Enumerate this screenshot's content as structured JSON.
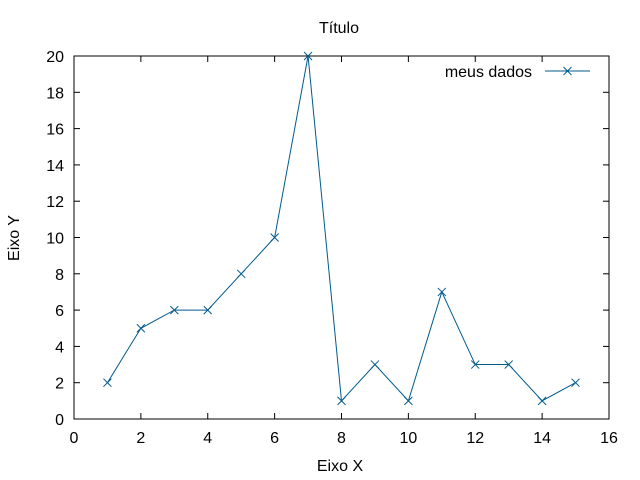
{
  "chart_data": {
    "type": "line",
    "title": "Título",
    "xlabel": "Eixo X",
    "ylabel": "Eixo Y",
    "xlim": [
      0,
      16
    ],
    "ylim": [
      0,
      20
    ],
    "x_ticks": [
      0,
      2,
      4,
      6,
      8,
      10,
      12,
      14,
      16
    ],
    "y_ticks": [
      0,
      2,
      4,
      6,
      8,
      10,
      12,
      14,
      16,
      18,
      20
    ],
    "grid": false,
    "legend_position": "top-right",
    "marker": "x",
    "series": [
      {
        "name": "meus dados",
        "color": "#005a8c",
        "x": [
          1,
          2,
          3,
          4,
          5,
          6,
          7,
          8,
          9,
          10,
          11,
          12,
          13,
          14,
          15
        ],
        "y": [
          2,
          5,
          6,
          6,
          8,
          10,
          20,
          1,
          3,
          1,
          7,
          3,
          3,
          1,
          2
        ]
      }
    ]
  }
}
